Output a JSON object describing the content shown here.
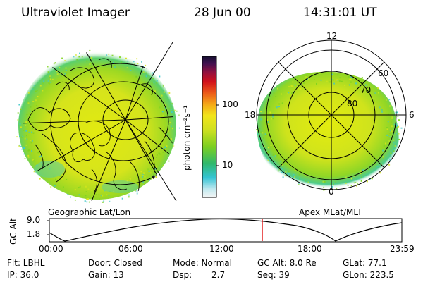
{
  "header": {
    "title": "Ultraviolet Imager",
    "date": "28 Jun 00",
    "time": "14:31:01 UT"
  },
  "colorbar": {
    "unit_label": "photon cm⁻²s⁻¹",
    "ticks": [
      "100",
      "10"
    ]
  },
  "left_panel": {
    "label": "Geographic Lat/Lon"
  },
  "right_panel": {
    "label": "Apex MLat/MLT",
    "mlt_labels": [
      "12",
      "18",
      "6",
      "0"
    ],
    "mlat_labels": [
      "60",
      "70",
      "80"
    ]
  },
  "altitude_plot": {
    "ylabel": "GC Alt",
    "yticks": [
      "9.0",
      "1.8"
    ],
    "xticks": [
      "00:00",
      "06:00",
      "12:00",
      "18:00",
      "23:59"
    ],
    "marker_fraction": 0.604
  },
  "footer": {
    "row1": {
      "flt": "Flt: LBHL",
      "door": "Door: Closed",
      "mode": "Mode: Normal",
      "gc_alt": "GC Alt: 8.0 Re",
      "glat": "GLat:  77.1"
    },
    "row2": {
      "ip": "IP: 36.0",
      "gain": "Gain: 13",
      "dsp_label": "Dsp:",
      "dsp_value": "2.7",
      "seq": "Seq: 39",
      "glon": "GLon: 223.5"
    }
  },
  "colors": {
    "aurora_base": "#d8e619",
    "aurora_green": "#7ed31e",
    "aurora_cyan": "#3fc8c8",
    "marker": "#e01010"
  }
}
